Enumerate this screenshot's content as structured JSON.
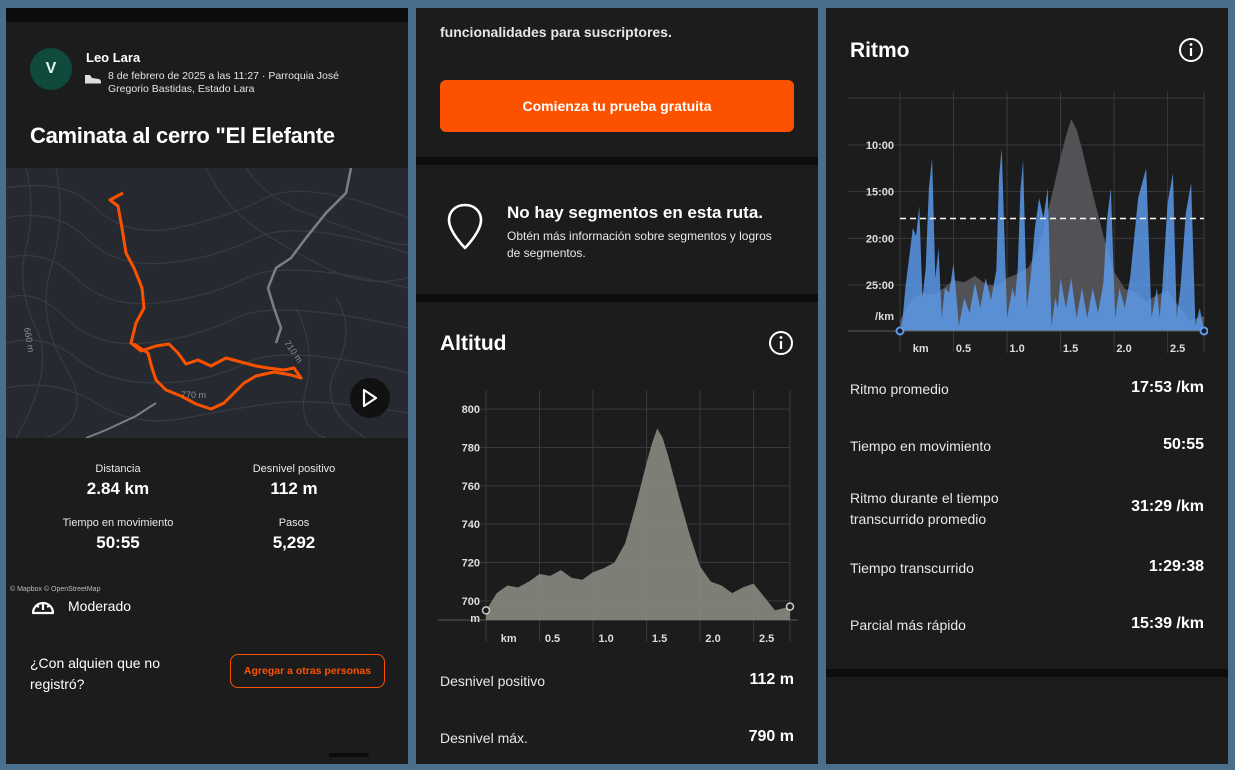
{
  "activity": {
    "athlete_initial": "V",
    "athlete_name": "Leo Lara",
    "meta": "8 de febrero de 2025 a las 11:27 · Parroquia José Gregorio Bastidas, Estado Lara",
    "title": "Caminata al cerro \"El Elefante",
    "map": {
      "attribution": "© Mapbox © OpenStreetMap",
      "contour_labels": [
        "660 m",
        "710 m",
        "770 m"
      ]
    },
    "stats": [
      {
        "label": "Distancia",
        "value": "2.84 km"
      },
      {
        "label": "Desnivel positivo",
        "value": "112 m"
      },
      {
        "label": "Tiempo en movimiento",
        "value": "50:55"
      },
      {
        "label": "Pasos",
        "value": "5,292"
      }
    ],
    "difficulty": "Moderado",
    "someone_question": "¿Con alquien que no registró?",
    "add_button": "Agregar a otras personas"
  },
  "subscription": {
    "text": "funcionalidades para suscriptores.",
    "trial_button": "Comienza tu prueba gratuita"
  },
  "segments": {
    "title": "No hay segmentos en esta ruta.",
    "subtitle": "Obtén más información sobre segmentos y logros de segmentos."
  },
  "elevation": {
    "title": "Altitud",
    "rows": [
      {
        "label": "Desnivel positivo",
        "value": "112 m"
      },
      {
        "label": "Desnivel máx.",
        "value": "790 m"
      }
    ]
  },
  "pace": {
    "title": "Ritmo",
    "rows": [
      {
        "label": "Ritmo promedio",
        "value": "17:53 /km"
      },
      {
        "label": "Tiempo en movimiento",
        "value": "50:55"
      },
      {
        "label": "Ritmo durante el tiempo transcurrido promedio",
        "value": "31:29 /km"
      },
      {
        "label": "Tiempo transcurrido",
        "value": "1:29:38"
      },
      {
        "label": "Parcial más rápido",
        "value": "15:39 /km"
      }
    ]
  },
  "chart_data": [
    {
      "type": "area",
      "title": "Altitud",
      "ylabel": "m",
      "xlabel": "km",
      "ylim": [
        690,
        810
      ],
      "xlim": [
        0,
        2.84
      ],
      "yticks": [
        "800",
        "780",
        "760",
        "740",
        "720",
        "700"
      ],
      "xticks": [
        "0.5",
        "1.0",
        "1.5",
        "2.0",
        "2.5"
      ],
      "x": [
        0,
        0.1,
        0.2,
        0.3,
        0.4,
        0.5,
        0.6,
        0.7,
        0.8,
        0.9,
        1.0,
        1.1,
        1.2,
        1.3,
        1.4,
        1.5,
        1.55,
        1.6,
        1.65,
        1.7,
        1.8,
        1.9,
        2.0,
        2.1,
        2.2,
        2.3,
        2.4,
        2.5,
        2.6,
        2.7,
        2.84
      ],
      "y": [
        695,
        704,
        708,
        707,
        710,
        714,
        713,
        716,
        712,
        711,
        715,
        717,
        720,
        730,
        750,
        772,
        782,
        790,
        785,
        776,
        755,
        735,
        718,
        710,
        708,
        704,
        707,
        709,
        702,
        695,
        697
      ],
      "color": "#8a8a82"
    },
    {
      "type": "area",
      "title": "Ritmo",
      "ylabel": "/km",
      "xlabel": "km",
      "xlim": [
        0,
        2.84
      ],
      "yticks": [
        "10:00",
        "15:00",
        "20:00",
        "25:00"
      ],
      "xticks": [
        "0.5",
        "1.0",
        "1.5",
        "2.0",
        "2.5"
      ],
      "reference_line": "17:53",
      "series": [
        {
          "name": "pace",
          "color": "#5b9cf0"
        },
        {
          "name": "elevation",
          "color": "#55555a"
        }
      ]
    }
  ]
}
